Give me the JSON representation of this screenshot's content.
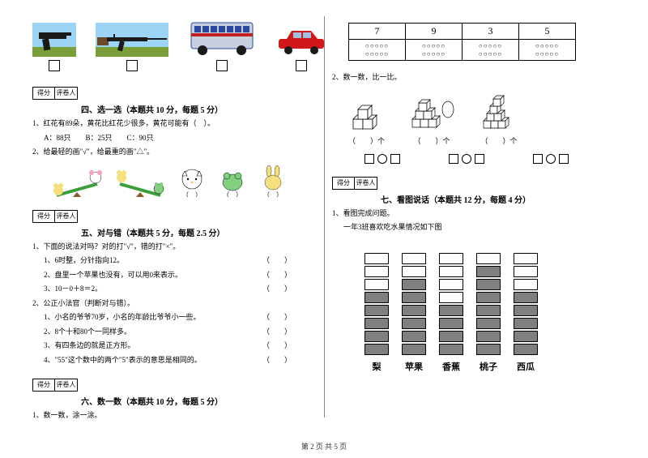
{
  "footer": "第 2 页 共 5 页",
  "left": {
    "score_headers": [
      "得分",
      "评卷人"
    ],
    "section4": {
      "title": "四、选一选（本题共 10 分，每题 5 分）",
      "q1": "1、红花有89朵，黄花比红花少很多，黄花可能有（　）。",
      "q1_options": "A：88只　　B：25只　　C：90只",
      "q2": "2、给最轻的画\"√\"，给最重的画\"△\"。"
    },
    "section5": {
      "title": "五、对与错（本题共 5 分，每题 2.5 分）",
      "q1": "1、下面的说法对吗？对的打\"√\"，错的打\"×\"。",
      "q1_items": [
        "1、6时整，分针指向12。",
        "2、盘里一个苹果也没有，可以用0来表示。",
        "3、10－0＋8＝2。"
      ],
      "q2": "2、公正小法官（判断对与错）。",
      "q2_items": [
        "1、小名的爷爷70岁，小名的年龄比爷爷小一些。",
        "2、8个十和80个一同样多。",
        "3、有四条边的就是正方形。",
        "4、\"55\"这个数中的两个\"5\"表示的意思是相同的。"
      ]
    },
    "section6": {
      "title": "六、数一数（本题共 10 分，每题 5 分）",
      "q1": "1、数一数，涂一涂。"
    }
  },
  "right": {
    "count_table": {
      "headers": [
        "7",
        "9",
        "3",
        "5"
      ],
      "ovals_row1": "○○○○○",
      "ovals_row2": "○○○○○"
    },
    "q2": "2、数一数，比一比。",
    "cube_labels": [
      "（　　）个",
      "（　　）个",
      "（　　）个"
    ],
    "score_headers": [
      "得分",
      "评卷人"
    ],
    "section7": {
      "title": "七、看图说话（本题共 12 分，每题 4 分）",
      "q1": "1、看图完成问题。",
      "q1_sub": "一年3班喜欢吃水果情况如下图",
      "fruits": [
        {
          "name": "梨",
          "filled": 5,
          "empty": 3
        },
        {
          "name": "苹果",
          "filled": 6,
          "empty": 2
        },
        {
          "name": "香蕉",
          "filled": 4,
          "empty": 4
        },
        {
          "name": "桃子",
          "filled": 7,
          "empty": 1
        },
        {
          "name": "西瓜",
          "filled": 5,
          "empty": 3
        }
      ]
    }
  },
  "colors": {
    "sky": "#9bd4f5",
    "grass": "#7a9e3a",
    "gun_dark": "#1a1a1a",
    "gun_brown": "#6b4a2a",
    "bus_body": "#c8d0e0",
    "bus_blue": "#2a4aa0",
    "bus_stripe": "#c02020",
    "car_red": "#d01818",
    "kitty_pink": "#f5a0c0",
    "bunny_yellow": "#f5e080",
    "seesaw_green": "#3a9e3a"
  }
}
